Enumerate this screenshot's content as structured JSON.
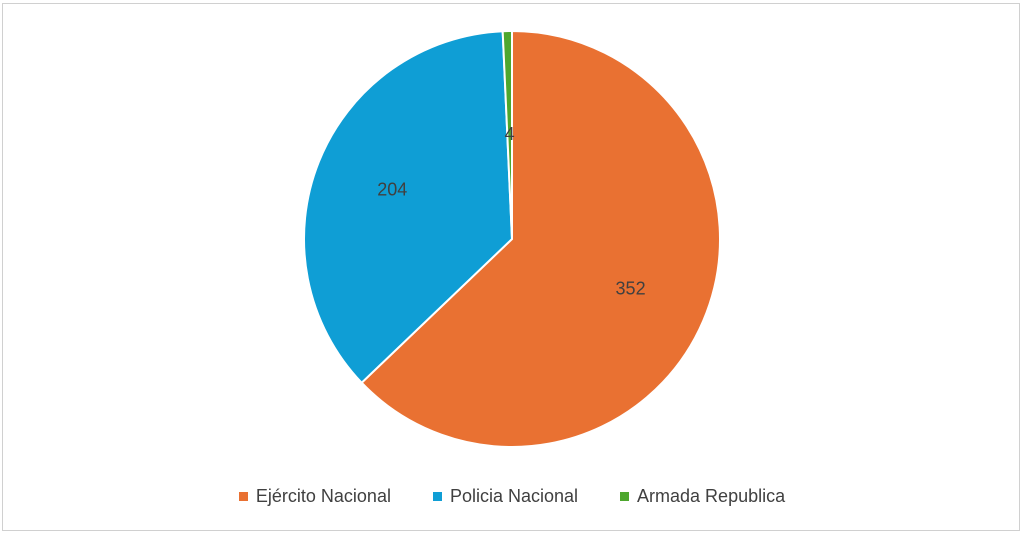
{
  "chart_data": {
    "type": "pie",
    "title": "",
    "legend_position": "bottom",
    "slices": [
      {
        "label": "Ejército Nacional",
        "value": 352,
        "color": "#E97132"
      },
      {
        "label": "Policia Nacional",
        "value": 204,
        "color": "#0F9ED5"
      },
      {
        "label": "Armada Republica",
        "value": 4,
        "color": "#4EA72E"
      }
    ]
  }
}
